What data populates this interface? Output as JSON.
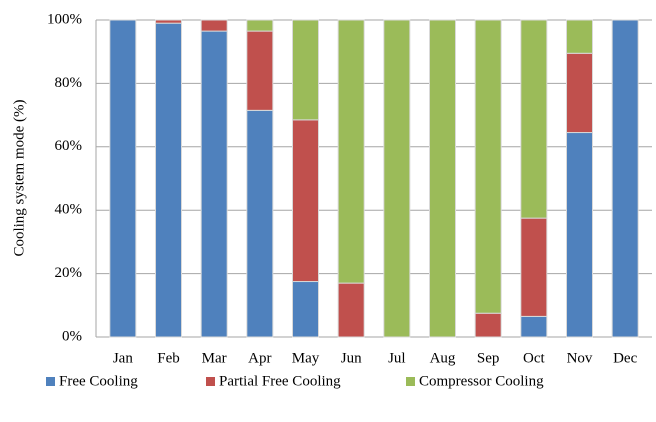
{
  "chart_data": {
    "type": "stacked_bar",
    "y_label": "Cooling system mode (%)",
    "categories": [
      "Jan",
      "Feb",
      "Mar",
      "Apr",
      "May",
      "Jun",
      "Jul",
      "Aug",
      "Sep",
      "Oct",
      "Nov",
      "Dec"
    ],
    "series": [
      {
        "name": "Free Cooling",
        "color": "#4f81bd",
        "values": [
          100,
          99,
          96.5,
          71.5,
          17.5,
          0,
          0,
          0,
          0,
          6.5,
          64.5,
          100
        ]
      },
      {
        "name": "Partial Free Cooling",
        "color": "#c0504d",
        "values": [
          0,
          1,
          3.5,
          25,
          51,
          17,
          0,
          0,
          7.5,
          31,
          25,
          0
        ]
      },
      {
        "name": "Compressor Cooling",
        "color": "#9bbb59",
        "values": [
          0,
          0,
          0,
          3.5,
          31.5,
          83,
          100,
          100,
          92.5,
          62.5,
          10.5,
          0
        ]
      }
    ],
    "ylim": [
      0,
      100
    ],
    "yticks": [
      {
        "value": 0,
        "label": "0%"
      },
      {
        "value": 20,
        "label": "20%"
      },
      {
        "value": 40,
        "label": "40%"
      },
      {
        "value": 60,
        "label": "60%"
      },
      {
        "value": 80,
        "label": "80%"
      },
      {
        "value": 100,
        "label": "100%"
      }
    ],
    "grid": true,
    "legend": "bottom"
  }
}
